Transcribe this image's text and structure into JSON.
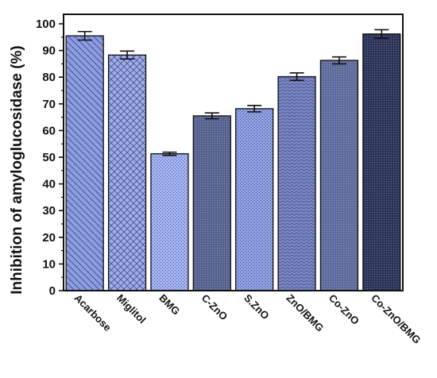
{
  "chart_data": {
    "type": "bar",
    "title": "",
    "xlabel": "",
    "ylabel": "Inhibition of amyloglucosidase (%)",
    "ylim": [
      0,
      100
    ],
    "yticks": [
      0,
      10,
      20,
      30,
      40,
      50,
      60,
      70,
      80,
      90,
      100
    ],
    "categories": [
      "Acarbose",
      "Miglitol",
      "BMG",
      "C-ZnO",
      "S.ZnO",
      "ZnO/BMG",
      "Co-ZnO",
      "Co-ZnO/BMG"
    ],
    "values": [
      95.5,
      88.3,
      51.3,
      65.5,
      68.2,
      80.2,
      86.3,
      96.2
    ],
    "errors": [
      1.6,
      1.5,
      0.6,
      1.1,
      1.2,
      1.4,
      1.3,
      1.6
    ],
    "bar_colors": [
      "#8c9de4",
      "#a0aef0",
      "#a4b2f4",
      "#56638e",
      "#8e9fe4",
      "#7b88c7",
      "#5f6b9c",
      "#2c3459"
    ],
    "patterns": [
      "diagonal-lines",
      "crosshatch",
      "dots",
      "dense-dots",
      "dots",
      "waves",
      "dense-dots",
      "dense-dots"
    ],
    "grid": false,
    "legend": "none"
  }
}
